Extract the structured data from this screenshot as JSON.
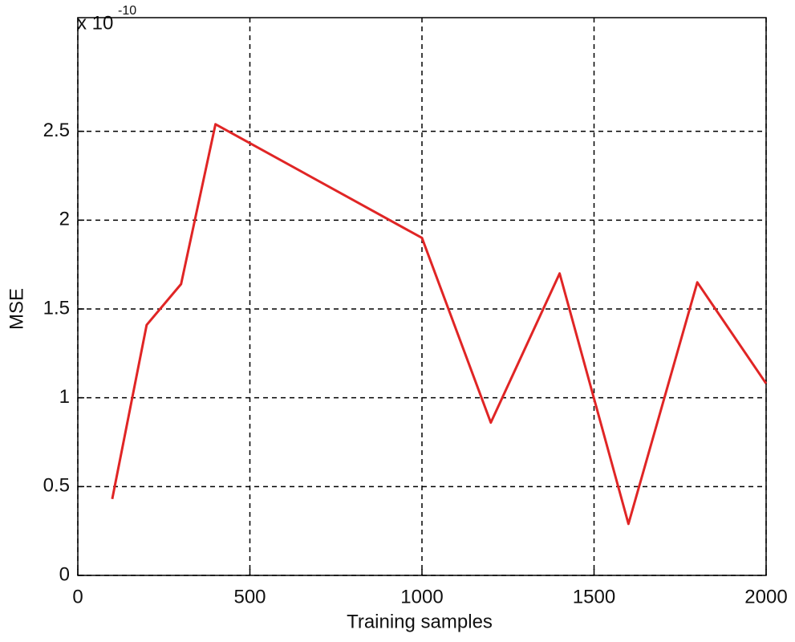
{
  "chart_data": {
    "type": "line",
    "x_label": "Training samples",
    "y_label": "MSE",
    "y_multiplier": "x 10",
    "y_exponent": "-10",
    "x": [
      100,
      200,
      300,
      400,
      1000,
      1200,
      1400,
      1600,
      1800,
      2000
    ],
    "series": [
      {
        "color": "#e02525",
        "values": [
          0.43,
          1.41,
          1.64,
          2.54,
          1.9,
          0.86,
          1.7,
          0.29,
          1.65,
          1.08
        ]
      }
    ],
    "xlim": [
      0,
      2000
    ],
    "ylim": [
      0,
      3.14
    ],
    "xticks": [
      0,
      500,
      1000,
      1500,
      2000
    ],
    "yticks": [
      0,
      0.5,
      1,
      1.5,
      2,
      2.5
    ],
    "grid": true
  }
}
